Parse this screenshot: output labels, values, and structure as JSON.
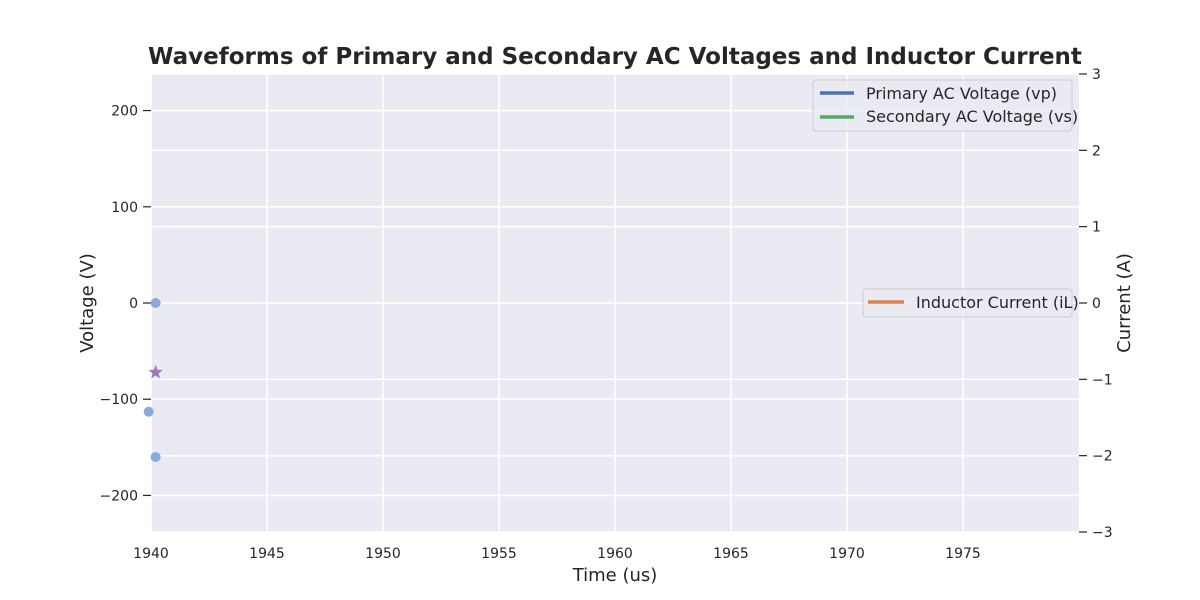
{
  "chart_data": {
    "type": "line",
    "title": "Waveforms of Primary and Secondary AC Voltages and Inductor Current",
    "xlabel": "Time (us)",
    "ylabel": "Voltage (V)",
    "ylabel_right": "Current (A)",
    "xlim": [
      1940,
      1980
    ],
    "ylim": [
      -238,
      238
    ],
    "ylim_right": [
      -3,
      3
    ],
    "x_ticks": [
      1940,
      1945,
      1950,
      1955,
      1960,
      1965,
      1970,
      1975
    ],
    "y_ticks": [
      -200,
      -100,
      0,
      100,
      200
    ],
    "y_ticks_right": [
      -3,
      -2,
      -1,
      0,
      1,
      2,
      3
    ],
    "grid": true,
    "background": "#eaeaf2",
    "series": [
      {
        "name": "Primary AC Voltage (vp)",
        "color": "#4c72b0",
        "axis": "left",
        "x": [],
        "y": []
      },
      {
        "name": "Secondary AC Voltage (vs)",
        "color": "#55a868",
        "axis": "left",
        "x": [],
        "y": []
      },
      {
        "name": "Inductor Current (iL)",
        "color": "#dd8452",
        "axis": "right",
        "x": [],
        "y": []
      }
    ],
    "markers": [
      {
        "x": 1940.2,
        "y": 0,
        "shape": "circle",
        "color": "#8aaade"
      },
      {
        "x": 1939.9,
        "y": -113,
        "shape": "circle",
        "color": "#8aaade"
      },
      {
        "x": 1940.2,
        "y": -160,
        "shape": "circle",
        "color": "#8aaade"
      },
      {
        "x": 1940.2,
        "y": -72,
        "shape": "star",
        "color": "#9b7bb8"
      }
    ],
    "legends": [
      {
        "position": "upper-right",
        "entries": [
          "Primary AC Voltage (vp)",
          "Secondary AC Voltage (vs)"
        ]
      },
      {
        "position": "center-right",
        "entries": [
          "Inductor Current (iL)"
        ]
      }
    ]
  }
}
